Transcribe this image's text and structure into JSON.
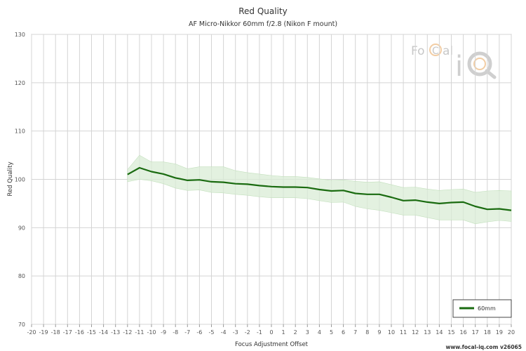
{
  "chart_data": {
    "type": "line",
    "title": "Red Quality",
    "subtitle": "AF Micro-Nikkor 60mm f/2.8 (Nikon F mount)",
    "xlabel": "Focus Adjustment Offset",
    "ylabel": "Red Quality",
    "xlim": [
      -20,
      20
    ],
    "ylim": [
      70,
      130
    ],
    "xticks": [
      -20,
      -19,
      -18,
      -17,
      -16,
      -15,
      -14,
      -13,
      -12,
      -11,
      -10,
      -9,
      -8,
      -7,
      -6,
      -5,
      -4,
      -3,
      -2,
      -1,
      0,
      1,
      2,
      3,
      4,
      5,
      6,
      7,
      8,
      9,
      10,
      11,
      12,
      13,
      14,
      15,
      16,
      17,
      18,
      19,
      20
    ],
    "yticks": [
      70,
      80,
      90,
      100,
      110,
      120,
      130
    ],
    "grid": true,
    "legend_position": "bottom-right",
    "series": [
      {
        "name": "60mm",
        "color": "#1a6b10",
        "x": [
          -12,
          -11,
          -10,
          -9,
          -8,
          -7,
          -6,
          -5,
          -4,
          -3,
          -2,
          -1,
          0,
          1,
          2,
          3,
          4,
          5,
          6,
          7,
          8,
          9,
          10,
          11,
          12,
          13,
          14,
          15,
          16,
          17,
          18,
          19,
          20
        ],
        "values": [
          101.0,
          102.4,
          101.6,
          101.1,
          100.3,
          99.8,
          99.9,
          99.5,
          99.4,
          99.1,
          99.0,
          98.7,
          98.5,
          98.4,
          98.4,
          98.3,
          97.9,
          97.6,
          97.7,
          97.1,
          96.9,
          96.9,
          96.3,
          95.6,
          95.7,
          95.3,
          95.0,
          95.2,
          95.3,
          94.4,
          93.8,
          93.9,
          93.6
        ],
        "upper": [
          102.0,
          105.0,
          103.6,
          103.6,
          103.2,
          102.2,
          102.6,
          102.6,
          102.6,
          101.8,
          101.4,
          101.1,
          100.8,
          100.6,
          100.6,
          100.4,
          100.1,
          99.8,
          99.9,
          99.6,
          99.4,
          99.5,
          98.9,
          98.3,
          98.4,
          98.0,
          97.7,
          97.9,
          98.0,
          97.3,
          97.6,
          97.7,
          97.6
        ],
        "lower": [
          99.5,
          100.0,
          99.7,
          99.1,
          98.2,
          97.7,
          97.8,
          97.3,
          97.2,
          96.9,
          96.7,
          96.4,
          96.2,
          96.2,
          96.2,
          96.0,
          95.6,
          95.2,
          95.3,
          94.4,
          93.9,
          93.6,
          93.1,
          92.6,
          92.6,
          92.1,
          91.6,
          91.6,
          91.6,
          90.8,
          91.2,
          91.5,
          91.3
        ]
      }
    ]
  },
  "watermark": {
    "brand": "FoCal iQ",
    "logo_icon": "focal-iq-logo-icon",
    "accent": "#e8a55a"
  },
  "footer": {
    "text": "www.focal-iq.com  v26065"
  }
}
